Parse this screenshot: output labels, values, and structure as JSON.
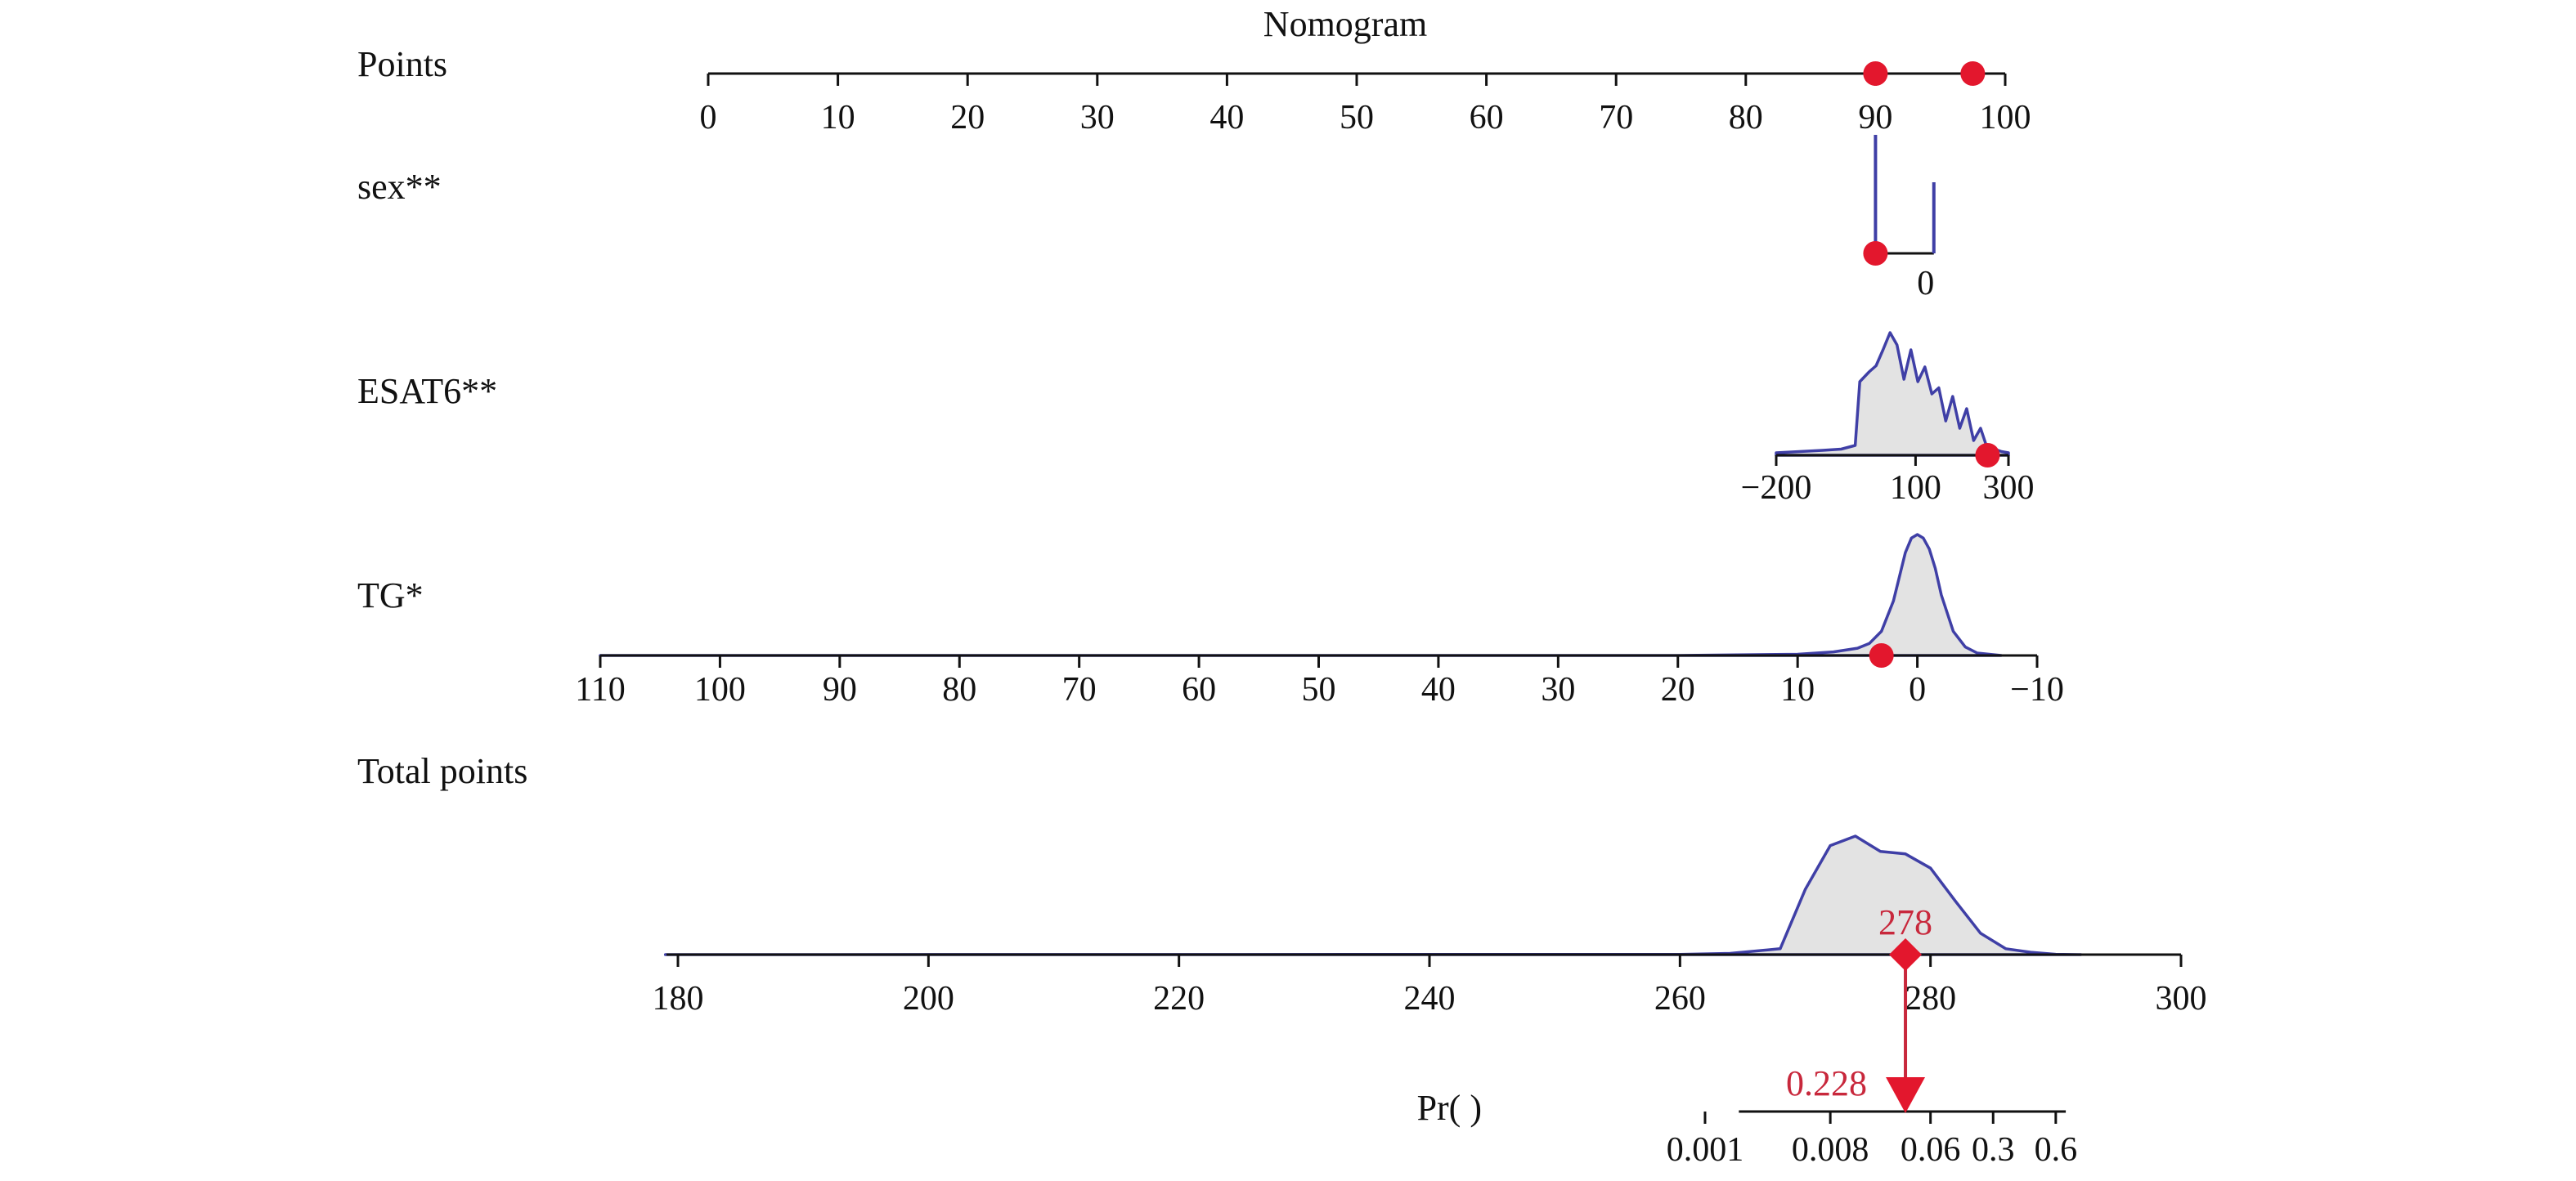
{
  "chart_data": {
    "type": "nomogram",
    "title": "Nomogram",
    "colors": {
      "density_line": "#3f3fa6",
      "density_fill": "#e3e3e3",
      "marker": "#e3172d",
      "result_text": "#c8283c"
    },
    "points_axis": {
      "label": "Points",
      "range": [
        0,
        100
      ],
      "ticks": [
        0,
        10,
        20,
        30,
        40,
        50,
        60,
        70,
        80,
        90,
        100
      ],
      "markers": [
        90,
        97.5
      ]
    },
    "variables": [
      {
        "label": "sex**",
        "type": "categorical",
        "levels": [
          {
            "label": "",
            "points": 90,
            "relative_frequency": 1.0
          },
          {
            "label": "0",
            "points": 94.5,
            "relative_frequency": 0.6
          }
        ],
        "selected_points": 90
      },
      {
        "label": "ESAT6**",
        "type": "continuous",
        "value_range": [
          -200,
          300
        ],
        "ticks": [
          -200,
          100,
          300
        ],
        "tick_labels": [
          "−200",
          "100",
          "300"
        ],
        "density_x": [
          -200,
          -150,
          -100,
          -60,
          -30,
          -20,
          0,
          15,
          30,
          45,
          60,
          75,
          90,
          105,
          120,
          135,
          150,
          165,
          180,
          195,
          210,
          225,
          240,
          255,
          270,
          285,
          300
        ],
        "density_y": [
          0.02,
          0.03,
          0.04,
          0.05,
          0.08,
          0.6,
          0.68,
          0.73,
          0.86,
          1.0,
          0.9,
          0.62,
          0.86,
          0.6,
          0.72,
          0.5,
          0.55,
          0.28,
          0.48,
          0.22,
          0.38,
          0.12,
          0.22,
          0.05,
          0.05,
          0.03,
          0.02
        ],
        "selected_value": 255
      },
      {
        "label": "TG*",
        "type": "continuous",
        "value_range": [
          110,
          -10
        ],
        "ticks": [
          110,
          100,
          90,
          80,
          70,
          60,
          50,
          40,
          30,
          20,
          10,
          0,
          -10
        ],
        "tick_labels": [
          "110",
          "100",
          "90",
          "80",
          "70",
          "60",
          "50",
          "40",
          "30",
          "20",
          "10",
          "0",
          "−10"
        ],
        "density_x": [
          110,
          20,
          10,
          7,
          5,
          4,
          3,
          2,
          1.5,
          1,
          0.5,
          0,
          -0.5,
          -1,
          -1.5,
          -2,
          -3,
          -4,
          -5,
          -7
        ],
        "density_y": [
          0,
          0,
          0.01,
          0.03,
          0.06,
          0.1,
          0.2,
          0.45,
          0.65,
          0.85,
          0.97,
          1.0,
          0.97,
          0.88,
          0.72,
          0.5,
          0.2,
          0.07,
          0.02,
          0
        ],
        "selected_value": 3
      }
    ],
    "total_points": {
      "label": "Total points",
      "range": [
        180,
        300
      ],
      "ticks": [
        180,
        200,
        220,
        240,
        260,
        280,
        300
      ],
      "density_x": [
        179,
        260,
        264,
        268,
        270,
        272,
        274,
        276,
        278,
        280,
        282,
        284,
        286,
        288,
        290,
        292
      ],
      "density_y": [
        0,
        0.002,
        0.01,
        0.05,
        0.55,
        0.92,
        1.0,
        0.87,
        0.85,
        0.73,
        0.45,
        0.18,
        0.05,
        0.02,
        0.003,
        0
      ],
      "result": 278,
      "result_label": "278"
    },
    "probability": {
      "label": "Pr( )",
      "ticks": [
        "0.001",
        "0.008",
        "0.06",
        "0.3",
        "0.6"
      ],
      "tick_at_total_points": [
        262,
        272,
        280,
        285,
        290
      ],
      "axis_extent_total_points": [
        264.7,
        290.8
      ],
      "result": 0.228,
      "result_label": "0.228"
    }
  }
}
